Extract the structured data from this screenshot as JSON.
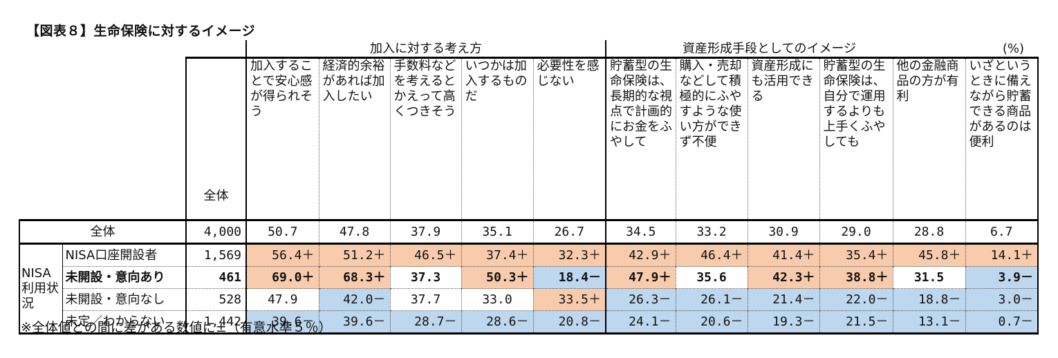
{
  "title": "【図表８】生命保険に対するイメージ",
  "unit": "(%)",
  "groups": {
    "g1": "加入に対する考え方",
    "g2": "資産形成手段としてのイメージ"
  },
  "header": {
    "total": "全体",
    "columns": [
      "加入することで安心感が得られそう",
      "経済的余裕があれば加入したい",
      "手数料などを考えるとかえって高くつきそう",
      "いつかは加入するものだ",
      "必要性を感じない",
      "貯蓄型の生命保険は、長期的な視点で計画的にお金をふやして",
      "購入・売却などして積極的にふやすような使い方ができず不便",
      "資産形成にも活用できる",
      "貯蓄型の生命保険は、自分で運用するよりも上手くふやしても",
      "他の金融商品の方が有利",
      "いざというときに備えながら貯蓄できる商品があるのは便利"
    ]
  },
  "side_group": "NISA利用状況",
  "rows": [
    {
      "label": "全体",
      "n": "4,000",
      "cells": [
        "50.7",
        "47.8",
        "37.9",
        "35.1",
        "26.7",
        "34.5",
        "33.2",
        "30.9",
        "29.0",
        "28.8",
        "6.7"
      ],
      "sig": [
        "",
        "",
        "",
        "",
        "",
        "",
        "",
        "",
        "",
        "",
        ""
      ]
    },
    {
      "label": "NISA口座開設者",
      "n": "1,569",
      "cells": [
        "56.4＋",
        "51.2＋",
        "46.5＋",
        "37.4＋",
        "32.3＋",
        "42.9＋",
        "46.4＋",
        "41.4＋",
        "35.4＋",
        "45.8＋",
        "14.1＋"
      ],
      "sig": [
        "+",
        "+",
        "+",
        "+",
        "+",
        "+",
        "+",
        "+",
        "+",
        "+",
        "+"
      ]
    },
    {
      "label": "未開設・意向あり",
      "n": "461",
      "cells": [
        "69.0＋",
        "68.3＋",
        "37.3",
        "50.3＋",
        "18.4－",
        "47.9＋",
        "35.6",
        "42.3＋",
        "38.8＋",
        "31.5",
        "3.9－"
      ],
      "sig": [
        "+",
        "+",
        "",
        "+",
        "-",
        "+",
        "",
        "+",
        "+",
        "",
        "-"
      ]
    },
    {
      "label": "未開設・意向なし",
      "n": "528",
      "cells": [
        "47.9",
        "42.0－",
        "37.7",
        "33.0",
        "33.5＋",
        "26.3－",
        "26.1－",
        "21.4－",
        "22.0－",
        "18.8－",
        "3.0－"
      ],
      "sig": [
        "",
        "-",
        "",
        "",
        "+",
        "-",
        "-",
        "-",
        "-",
        "-",
        "-"
      ]
    },
    {
      "label": "未定／わからない",
      "n": "1,442",
      "cells": [
        "39.6－",
        "39.6－",
        "28.7－",
        "28.6－",
        "20.8－",
        "24.1－",
        "20.6－",
        "19.3－",
        "21.5－",
        "13.1－",
        "0.7－"
      ],
      "sig": [
        "-",
        "-",
        "-",
        "-",
        "-",
        "-",
        "-",
        "-",
        "-",
        "-",
        "-"
      ]
    }
  ],
  "colors": {
    "positive": "#F8CBAD",
    "negative": "#BDD7EE"
  },
  "footnote": "※全体値との間に差がある数値に±（有意水準５％）"
}
